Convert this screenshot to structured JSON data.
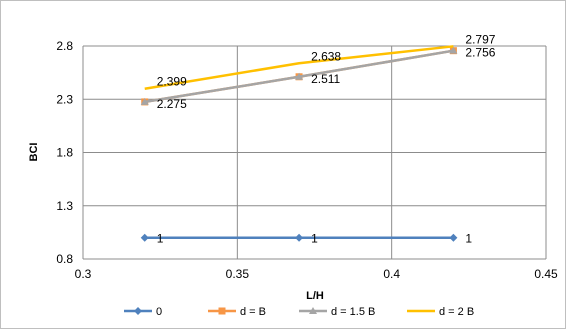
{
  "chart_data": {
    "type": "line",
    "xlabel": "L/H",
    "ylabel": "BCI",
    "xlim": [
      0.3,
      0.45
    ],
    "ylim": [
      0.8,
      2.8
    ],
    "xticks": [
      0.3,
      0.35,
      0.4,
      0.45
    ],
    "yticks": [
      0.8,
      1.3,
      1.8,
      2.3,
      2.8
    ],
    "xtick_labels": [
      "0.3",
      "0.35",
      "0.4",
      "0.45"
    ],
    "ytick_labels": [
      "0.8",
      "1.3",
      "1.8",
      "2.3",
      "2.8"
    ],
    "grid": "major",
    "legend_position": "bottom",
    "x": [
      0.32,
      0.37,
      0.42
    ],
    "series": [
      {
        "name": "0",
        "color": "#4f81bd",
        "marker": "diamond",
        "values": [
          1,
          1,
          1
        ],
        "labels": [
          "1",
          "1",
          "1"
        ]
      },
      {
        "name": "d = B",
        "color": "#f79646",
        "marker": "square",
        "values": [
          2.275,
          2.511,
          2.756
        ],
        "labels": [
          "2.275",
          "2.511",
          "2.756"
        ]
      },
      {
        "name": "d = 1.5 B",
        "color": "#a5a5a5",
        "marker": "triangle",
        "values": [
          2.275,
          2.511,
          2.756
        ],
        "labels": [],
        "overlaps": "d = B"
      },
      {
        "name": "d = 2 B",
        "color": "#ffc000",
        "marker": "none",
        "values": [
          2.399,
          2.638,
          2.797
        ],
        "labels": [
          "2.399",
          "2.638",
          "2.797"
        ]
      }
    ]
  }
}
